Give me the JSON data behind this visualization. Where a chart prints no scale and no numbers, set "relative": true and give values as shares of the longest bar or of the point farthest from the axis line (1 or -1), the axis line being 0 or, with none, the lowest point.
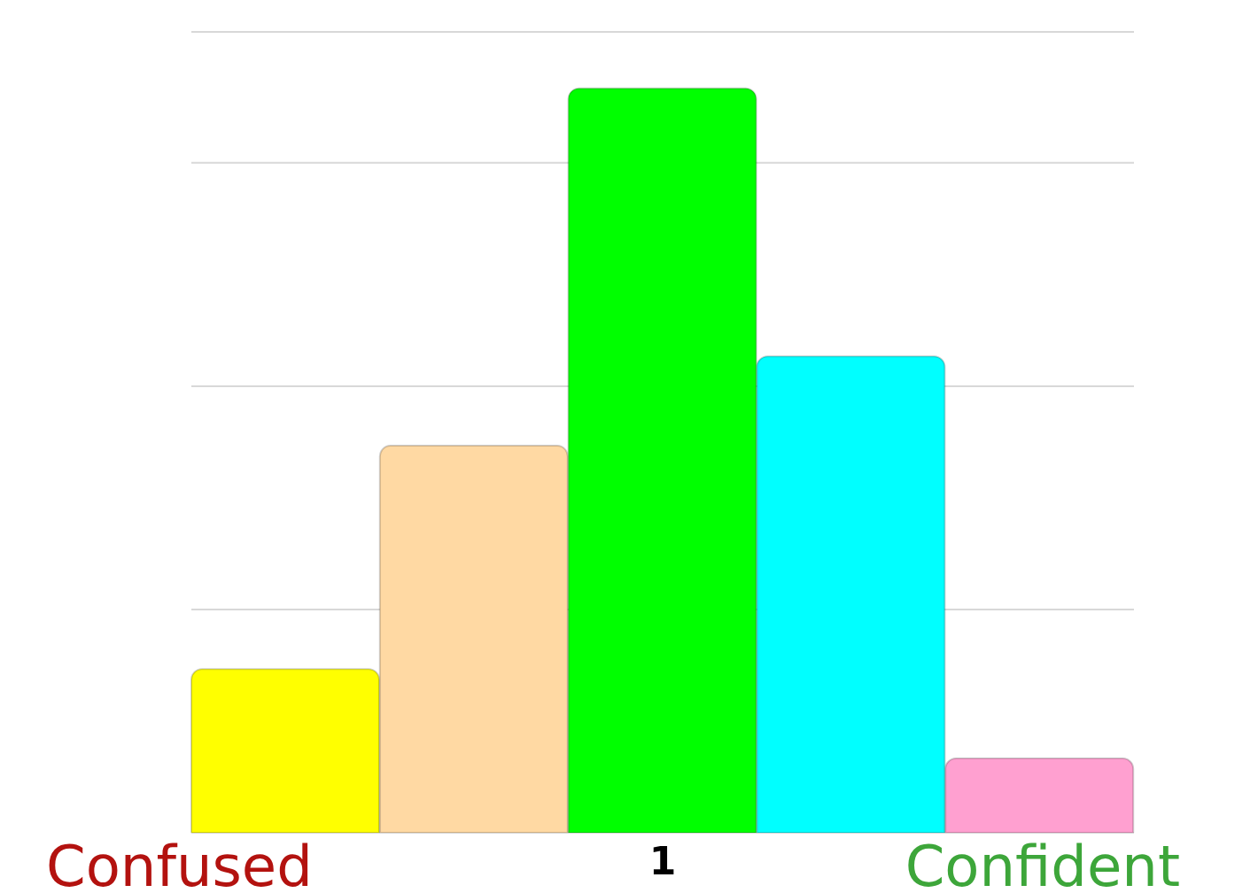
{
  "chart_data": {
    "type": "bar",
    "relative": true,
    "grid": "y",
    "legend": false,
    "categories": [
      null,
      null,
      "1",
      null,
      null
    ],
    "values": [
      0.22,
      0.52,
      1,
      0.64,
      0.1
    ],
    "colors": [
      "#ffff00",
      "#ffd9a3",
      "#00ff00",
      "#00ffff",
      "#ffa0d0"
    ],
    "annotations": [
      "Confused",
      "Confident"
    ]
  }
}
